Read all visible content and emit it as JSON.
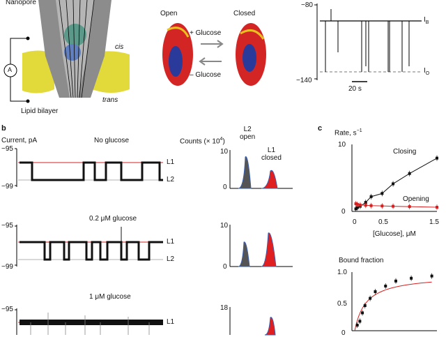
{
  "panel_a": {
    "nanopore_label": "Nanopore",
    "amp_label": "A",
    "cis_label": "cis",
    "trans_label": "trans",
    "bilayer_label": "Lipid bilayer",
    "open_label": "Open",
    "closed_label": "Closed",
    "plus_glucose": "+ Glucose",
    "minus_glucose": "– Glucose",
    "trace_y_top": "−80",
    "trace_y_bottom": "−140",
    "trace_ib": "I",
    "trace_ib_sub": "B",
    "trace_io": "I",
    "trace_io_sub": "O",
    "scalebar": "20 s"
  },
  "panel_b": {
    "letter": "b",
    "current_label": "Current, pA",
    "counts_label": "Counts (× 10",
    "counts_exp": "4",
    "counts_close": ")",
    "l2_open_1": "L2",
    "l2_open_2": "open",
    "l1_closed_1": "L1",
    "l1_closed_2": "closed",
    "rows": [
      {
        "condition": "No glucose",
        "y_top": "−95",
        "y_bottom": "−99",
        "l1": "L1",
        "l2": "L2",
        "count_top": "10",
        "count_bottom": "0"
      },
      {
        "condition": "0.2 μM glucose",
        "y_top": "−95",
        "y_bottom": "−99",
        "l1": "L1",
        "l2": "L2",
        "count_top": "10",
        "count_bottom": "0"
      },
      {
        "condition": "1 μM glucose",
        "y_top": "−95",
        "l1": "L1",
        "count_top": "18"
      }
    ]
  },
  "panel_c": {
    "letter": "c",
    "chart_data": [
      {
        "type": "line",
        "ylabel": "Rate, s",
        "ylabel_exp": "−1",
        "xlabel": "[Glucose], μM",
        "xlim": [
          0,
          1.5
        ],
        "ylim": [
          0,
          10
        ],
        "x_ticks": [
          "0",
          "0.5",
          "1.5"
        ],
        "y_ticks": [
          "0",
          "10"
        ],
        "series": [
          {
            "name": "Closing",
            "color": "#111111",
            "x": [
              0.02,
              0.05,
              0.1,
              0.2,
              0.3,
              0.5,
              0.7,
              1.0,
              1.5
            ],
            "y": [
              0.4,
              0.6,
              0.8,
              1.4,
              2.3,
              2.8,
              4.3,
              5.9,
              8.3
            ]
          },
          {
            "name": "Opening",
            "color": "#d62020",
            "x": [
              0.02,
              0.05,
              0.1,
              0.2,
              0.3,
              0.5,
              0.7,
              1.0,
              1.5
            ],
            "y": [
              1.2,
              1.1,
              1.0,
              0.95,
              0.9,
              0.85,
              0.8,
              0.75,
              0.65
            ]
          }
        ]
      },
      {
        "type": "scatter",
        "ylabel": "Bound fraction",
        "ylim": [
          0,
          1.0
        ],
        "y_ticks": [
          "1.0",
          "0.5",
          "0"
        ],
        "fit_color": "#d62020",
        "x": [
          0.05,
          0.1,
          0.15,
          0.2,
          0.3,
          0.4,
          0.6,
          0.8,
          1.1,
          1.5
        ],
        "y": [
          0.1,
          0.17,
          0.32,
          0.45,
          0.58,
          0.7,
          0.8,
          0.89,
          0.94,
          0.98
        ]
      }
    ]
  }
}
